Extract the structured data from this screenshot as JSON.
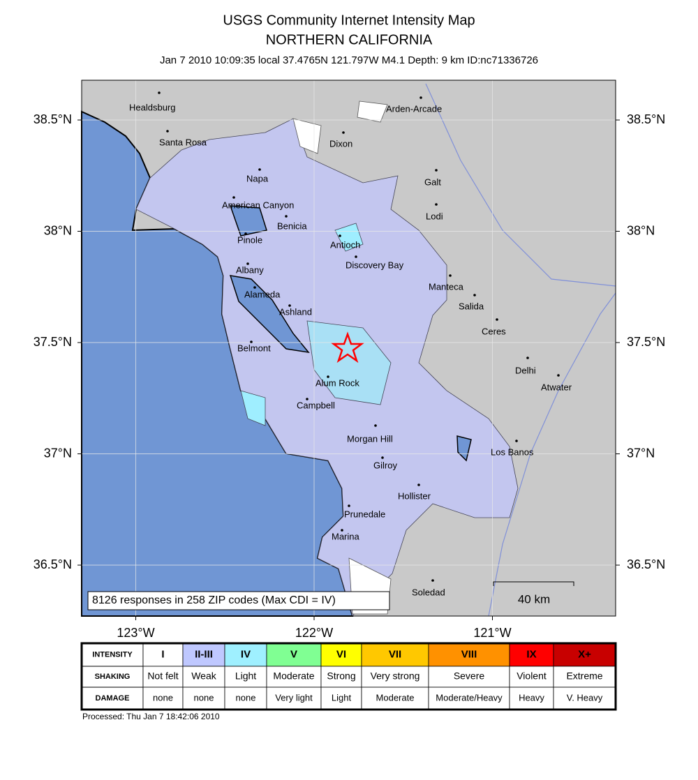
{
  "header": {
    "title": "USGS Community Internet Intensity Map",
    "region": "NORTHERN CALIFORNIA",
    "event": "Jan 7 2010 10:09:35 local 37.4765N 121.797W M4.1 Depth: 9 km ID:nc71336726"
  },
  "map": {
    "latitudes": [
      {
        "value": 38.5,
        "label": "38.5°N"
      },
      {
        "value": 38,
        "label": "38°N"
      },
      {
        "value": 37.5,
        "label": "37.5°N"
      },
      {
        "value": 37,
        "label": "37°N"
      },
      {
        "value": 36.5,
        "label": "36.5°N"
      }
    ],
    "longitudes": [
      {
        "value": -123,
        "label": "123°W"
      },
      {
        "value": -122,
        "label": "122°W"
      },
      {
        "value": -121,
        "label": "121°W"
      }
    ],
    "cities": [
      "Healdsburg",
      "Santa Rosa",
      "Napa",
      "American Canyon",
      "Benicia",
      "Pinole",
      "Albany",
      "Alameda",
      "Ashland",
      "Belmont",
      "Alum Rock",
      "Campbell",
      "Morgan Hill",
      "Gilroy",
      "Hollister",
      "Prunedale",
      "Marina",
      "Soledad",
      "Arden-Arcade",
      "Dixon",
      "Galt",
      "Lodi",
      "Antioch",
      "Discovery Bay",
      "Manteca",
      "Salida",
      "Ceres",
      "Delhi",
      "Atwater",
      "Los Banos"
    ],
    "note": "8126 responses in 258 ZIP codes (Max CDI = IV)",
    "scale_label": "40 km"
  },
  "legend": {
    "row_labels": [
      "INTENSITY",
      "SHAKING",
      "DAMAGE"
    ],
    "columns": [
      {
        "intensity": "I",
        "shaking": "Not felt",
        "damage": "none",
        "color": "#ffffff"
      },
      {
        "intensity": "II-III",
        "shaking": "Weak",
        "damage": "none",
        "color": "#bfc8ff"
      },
      {
        "intensity": "IV",
        "shaking": "Light",
        "damage": "none",
        "color": "#9ff0ff"
      },
      {
        "intensity": "V",
        "shaking": "Moderate",
        "damage": "Very light",
        "color": "#80ff93"
      },
      {
        "intensity": "VI",
        "shaking": "Strong",
        "damage": "Light",
        "color": "#ffff00"
      },
      {
        "intensity": "VII",
        "shaking": "Very strong",
        "damage": "Moderate",
        "color": "#ffc800"
      },
      {
        "intensity": "VIII",
        "shaking": "Severe",
        "damage": "Moderate/Heavy",
        "color": "#ff9100"
      },
      {
        "intensity": "IX",
        "shaking": "Violent",
        "damage": "Heavy",
        "color": "#ff0000"
      },
      {
        "intensity": "X+",
        "shaking": "Extreme",
        "damage": "V. Heavy",
        "color": "#c80000"
      }
    ]
  },
  "footer": {
    "processed": "Processed: Thu Jan  7 18:42:06 2010"
  }
}
